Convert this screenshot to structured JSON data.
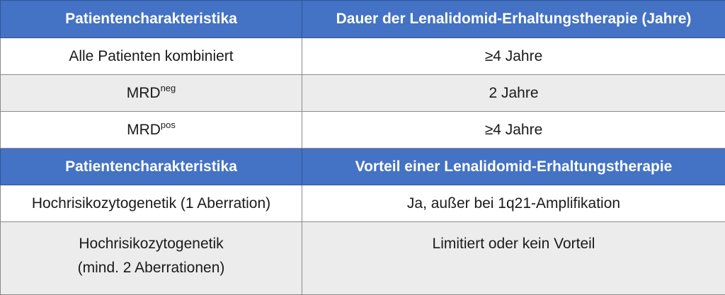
{
  "table1": {
    "headers": [
      "Patientencharakteristika",
      "Dauer der Lenalidomid-Erhaltungstherapie (Jahre)"
    ],
    "rows": [
      {
        "label": "Alle Patienten kombiniert",
        "label_sup": "",
        "value": "≥4 Jahre"
      },
      {
        "label": "MRD",
        "label_sup": "neg",
        "value": "2 Jahre"
      },
      {
        "label": "MRD",
        "label_sup": "pos",
        "value": "≥4 Jahre"
      }
    ]
  },
  "table2": {
    "headers": [
      "Patientencharakteristika",
      "Vorteil einer Lenalidomid-Erhaltungstherapie"
    ],
    "rows": [
      {
        "label_lines": [
          "Hochrisikozytogenetik (1 Aberration)"
        ],
        "value": "Ja, außer bei 1q21-Amplifikation"
      },
      {
        "label_lines": [
          "Hochrisikozytogenetik",
          "(mind. 2 Aberrationen)"
        ],
        "value": "Limitiert oder kein Vorteil"
      }
    ]
  },
  "colors": {
    "header_bg": "#4472c4",
    "alt_row_bg": "#ececec",
    "border": "#8a8a8a"
  }
}
